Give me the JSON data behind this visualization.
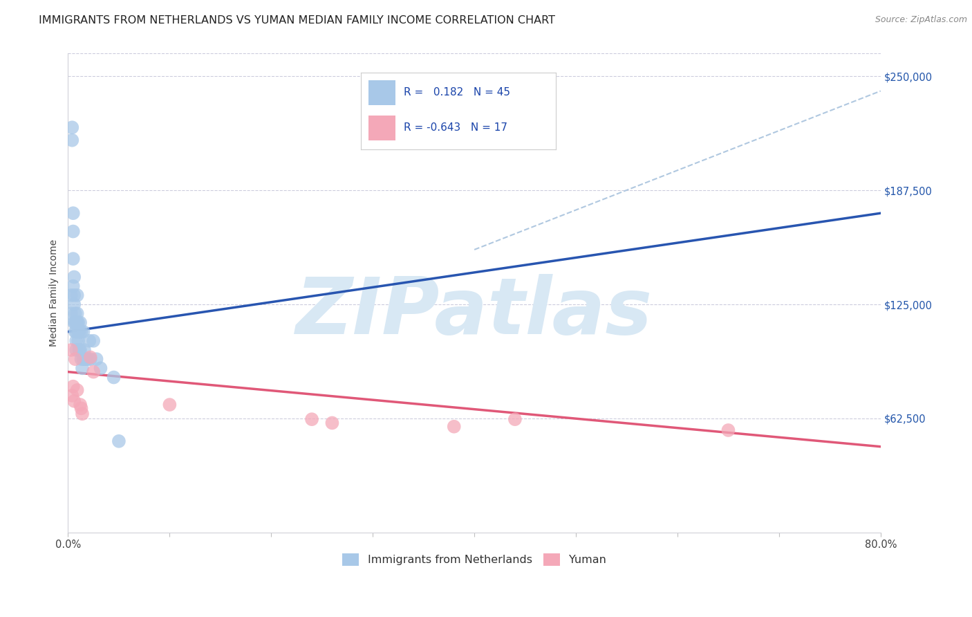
{
  "title": "IMMIGRANTS FROM NETHERLANDS VS YUMAN MEDIAN FAMILY INCOME CORRELATION CHART",
  "source": "Source: ZipAtlas.com",
  "ylabel": "Median Family Income",
  "xlim": [
    0.0,
    0.8
  ],
  "ylim": [
    0,
    262500
  ],
  "yticks": [
    62500,
    125000,
    187500,
    250000
  ],
  "ytick_labels": [
    "$62,500",
    "$125,000",
    "$187,500",
    "$250,000"
  ],
  "xticks": [
    0.0,
    0.1,
    0.2,
    0.3,
    0.4,
    0.5,
    0.6,
    0.7,
    0.8
  ],
  "blue_R": 0.182,
  "blue_N": 45,
  "pink_R": -0.643,
  "pink_N": 17,
  "blue_color": "#a8c8e8",
  "pink_color": "#f4a8b8",
  "blue_line_color": "#2855b0",
  "pink_line_color": "#e05878",
  "dashed_line_color": "#b0c8e0",
  "watermark_color": "#d8e8f4",
  "watermark_text": "ZIPatlas",
  "blue_scatter_x": [
    0.003,
    0.003,
    0.004,
    0.004,
    0.005,
    0.005,
    0.005,
    0.005,
    0.006,
    0.006,
    0.006,
    0.006,
    0.007,
    0.007,
    0.007,
    0.008,
    0.008,
    0.008,
    0.008,
    0.009,
    0.009,
    0.009,
    0.01,
    0.01,
    0.01,
    0.011,
    0.011,
    0.012,
    0.012,
    0.013,
    0.013,
    0.014,
    0.015,
    0.015,
    0.016,
    0.017,
    0.018,
    0.02,
    0.021,
    0.022,
    0.025,
    0.028,
    0.032,
    0.045,
    0.05
  ],
  "blue_scatter_y": [
    130000,
    120000,
    215000,
    222000,
    175000,
    165000,
    150000,
    135000,
    140000,
    130000,
    125000,
    115000,
    120000,
    115000,
    110000,
    115000,
    110000,
    105000,
    100000,
    130000,
    120000,
    115000,
    115000,
    110000,
    105000,
    110000,
    100000,
    115000,
    100000,
    110000,
    95000,
    90000,
    95000,
    110000,
    100000,
    95000,
    95000,
    95000,
    105000,
    95000,
    105000,
    95000,
    90000,
    85000,
    50000
  ],
  "pink_scatter_x": [
    0.003,
    0.004,
    0.005,
    0.006,
    0.007,
    0.009,
    0.012,
    0.013,
    0.014,
    0.022,
    0.025,
    0.1,
    0.24,
    0.26,
    0.38,
    0.44,
    0.65
  ],
  "pink_scatter_y": [
    100000,
    75000,
    80000,
    72000,
    95000,
    78000,
    70000,
    68000,
    65000,
    96000,
    88000,
    70000,
    62000,
    60000,
    58000,
    62000,
    56000
  ],
  "blue_trendline_x": [
    0.0,
    0.8
  ],
  "blue_trendline_y": [
    110000,
    175000
  ],
  "pink_trendline_x": [
    0.0,
    0.8
  ],
  "pink_trendline_y": [
    88000,
    47000
  ],
  "dashed_trendline_x": [
    0.4,
    0.8
  ],
  "dashed_trendline_y": [
    155000,
    242000
  ],
  "bg_color": "#ffffff",
  "grid_color": "#ccccdd",
  "title_fontsize": 11.5,
  "label_fontsize": 10,
  "tick_fontsize": 10.5
}
